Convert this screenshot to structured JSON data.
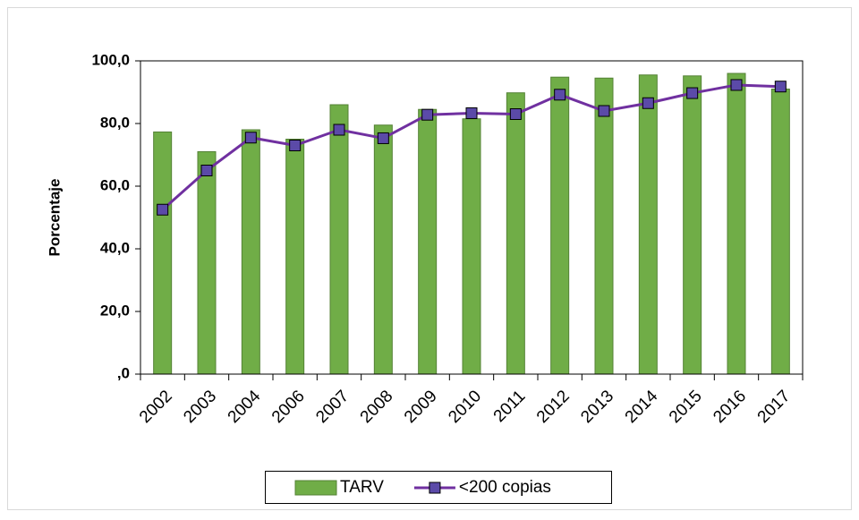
{
  "chart_data": {
    "type": "bar",
    "y_label": "Porcentaje",
    "categories": [
      "2002",
      "2003",
      "2004",
      "2006",
      "2007",
      "2008",
      "2009",
      "2010",
      "2011",
      "2012",
      "2013",
      "2014",
      "2015",
      "2016",
      "2017"
    ],
    "series": [
      {
        "name": "TARV",
        "type": "bar",
        "color": "#70ad47",
        "edge": "#548235",
        "values": [
          77.3,
          71.0,
          78.0,
          75.0,
          86.0,
          79.5,
          84.5,
          81.5,
          89.8,
          94.8,
          94.5,
          95.5,
          95.2,
          96.0,
          91.0
        ]
      },
      {
        "name": "<200 copias",
        "type": "line",
        "color": "#7030a0",
        "marker_color": "#5b4aa8",
        "values": [
          52.5,
          65.0,
          75.5,
          73.0,
          78.0,
          75.3,
          82.8,
          83.3,
          83.0,
          89.2,
          84.0,
          86.5,
          89.7,
          92.3,
          91.8
        ]
      }
    ],
    "ylim": [
      0,
      100
    ],
    "yticks": [
      {
        "value": 0,
        "label": ",0"
      },
      {
        "value": 20,
        "label": "20,0"
      },
      {
        "value": 40,
        "label": "40,0"
      },
      {
        "value": 60,
        "label": "60,0"
      },
      {
        "value": 80,
        "label": "80,0"
      },
      {
        "value": 100,
        "label": "100,0"
      }
    ],
    "grid": false,
    "legend": "bottom"
  }
}
